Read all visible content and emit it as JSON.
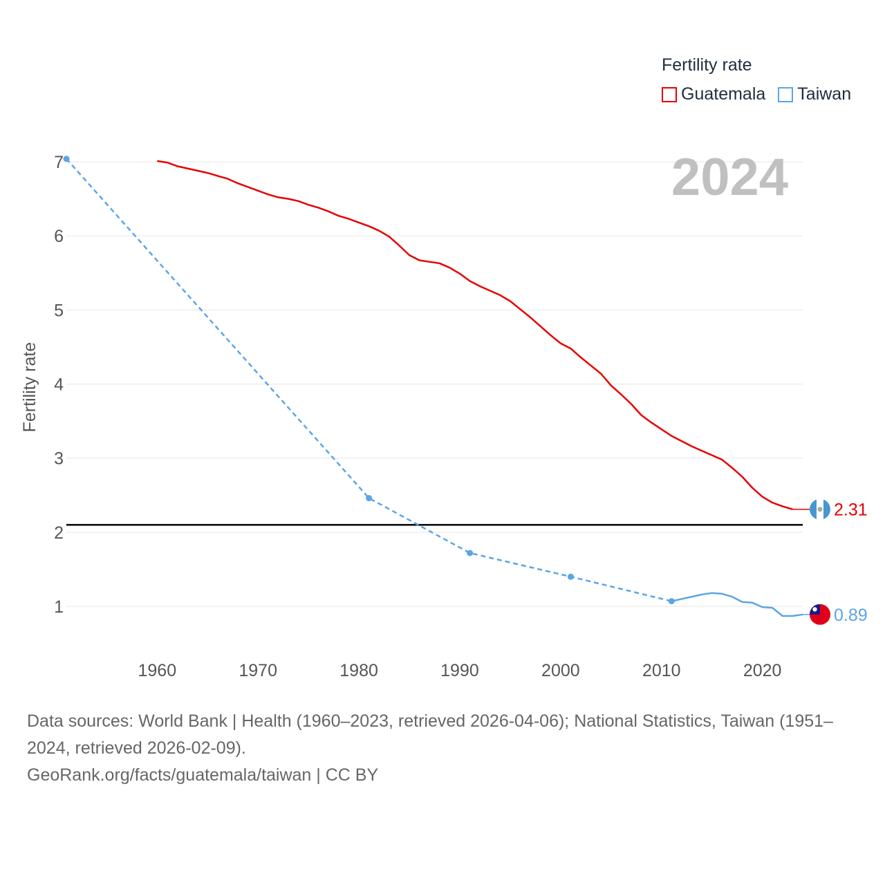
{
  "legend": {
    "title": "Fertility rate",
    "items": [
      {
        "name": "Guatemala",
        "color": "#e60000"
      },
      {
        "name": "Taiwan",
        "color": "#5aa5e6"
      }
    ]
  },
  "footer": {
    "sources": "Data sources: World Bank | Health (1960–2023, retrieved 2026-04-06); National Statistics, Taiwan (1951–2024, retrieved 2026-02-09).",
    "link": "GeoRank.org/facts/guatemala/taiwan | CC BY"
  },
  "chart_data": {
    "type": "line",
    "title": "Fertility rate",
    "year_label": "2024",
    "xlabel": "",
    "ylabel": "Fertility rate",
    "xlim": [
      1951,
      2024
    ],
    "ylim": [
      0.4,
      7.2
    ],
    "x_ticks": [
      1960,
      1970,
      1980,
      1990,
      2000,
      2010,
      2020
    ],
    "y_ticks": [
      1,
      2,
      3,
      4,
      5,
      6,
      7
    ],
    "reference_line": {
      "y": 2.1,
      "color": "#000000"
    },
    "series": [
      {
        "name": "Guatemala",
        "color": "#e60000",
        "dashed": false,
        "end_label": "2.31",
        "end_value": 2.31,
        "points": [
          [
            1960,
            7.01
          ],
          [
            1961,
            6.99
          ],
          [
            1962,
            6.94
          ],
          [
            1963,
            6.91
          ],
          [
            1964,
            6.88
          ],
          [
            1965,
            6.85
          ],
          [
            1966,
            6.81
          ],
          [
            1967,
            6.77
          ],
          [
            1968,
            6.71
          ],
          [
            1969,
            6.66
          ],
          [
            1970,
            6.61
          ],
          [
            1971,
            6.56
          ],
          [
            1972,
            6.52
          ],
          [
            1973,
            6.5
          ],
          [
            1974,
            6.47
          ],
          [
            1975,
            6.42
          ],
          [
            1976,
            6.38
          ],
          [
            1977,
            6.33
          ],
          [
            1978,
            6.27
          ],
          [
            1979,
            6.23
          ],
          [
            1980,
            6.18
          ],
          [
            1981,
            6.13
          ],
          [
            1982,
            6.07
          ],
          [
            1983,
            5.99
          ],
          [
            1984,
            5.87
          ],
          [
            1985,
            5.74
          ],
          [
            1986,
            5.67
          ],
          [
            1987,
            5.65
          ],
          [
            1988,
            5.63
          ],
          [
            1989,
            5.57
          ],
          [
            1990,
            5.49
          ],
          [
            1991,
            5.39
          ],
          [
            1992,
            5.32
          ],
          [
            1993,
            5.26
          ],
          [
            1994,
            5.2
          ],
          [
            1995,
            5.12
          ],
          [
            1996,
            5.01
          ],
          [
            1997,
            4.9
          ],
          [
            1998,
            4.78
          ],
          [
            1999,
            4.66
          ],
          [
            2000,
            4.55
          ],
          [
            2001,
            4.48
          ],
          [
            2002,
            4.36
          ],
          [
            2003,
            4.25
          ],
          [
            2004,
            4.14
          ],
          [
            2005,
            3.98
          ],
          [
            2006,
            3.86
          ],
          [
            2007,
            3.73
          ],
          [
            2008,
            3.58
          ],
          [
            2009,
            3.48
          ],
          [
            2010,
            3.39
          ],
          [
            2011,
            3.3
          ],
          [
            2012,
            3.23
          ],
          [
            2013,
            3.16
          ],
          [
            2014,
            3.1
          ],
          [
            2015,
            3.04
          ],
          [
            2016,
            2.98
          ],
          [
            2017,
            2.87
          ],
          [
            2018,
            2.75
          ],
          [
            2019,
            2.6
          ],
          [
            2020,
            2.48
          ],
          [
            2021,
            2.4
          ],
          [
            2022,
            2.35
          ],
          [
            2023,
            2.31
          ]
        ]
      },
      {
        "name": "Taiwan",
        "color": "#5aa5e6",
        "dashed_until": 2011,
        "end_label": "0.89",
        "end_value": 0.89,
        "markers": [
          1951,
          1981,
          1991,
          2001,
          2011
        ],
        "points": [
          [
            1951,
            7.04
          ],
          [
            1981,
            2.46
          ],
          [
            1991,
            1.72
          ],
          [
            2001,
            1.4
          ],
          [
            2011,
            1.07
          ],
          [
            2012,
            1.1
          ],
          [
            2013,
            1.13
          ],
          [
            2014,
            1.16
          ],
          [
            2015,
            1.18
          ],
          [
            2016,
            1.17
          ],
          [
            2017,
            1.13
          ],
          [
            2018,
            1.06
          ],
          [
            2019,
            1.05
          ],
          [
            2020,
            0.99
          ],
          [
            2021,
            0.98
          ],
          [
            2022,
            0.87
          ],
          [
            2023,
            0.87
          ],
          [
            2024,
            0.89
          ]
        ]
      }
    ]
  }
}
